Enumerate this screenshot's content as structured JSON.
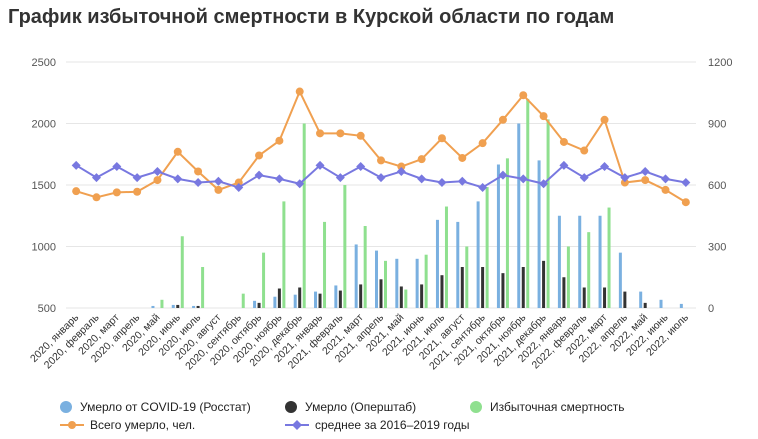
{
  "title": "График избыточной смертности в Курской области по годам",
  "chart_data": {
    "type": "bar",
    "categories": [
      "2020, январь",
      "2020, февраль",
      "2020, март",
      "2020, апрель",
      "2020, май",
      "2020, июнь",
      "2020, июль",
      "2020, август",
      "2020, сентябрь",
      "2020, октябрь",
      "2020, ноябрь",
      "2020, декабрь",
      "2021, январь",
      "2021, февраль",
      "2021, март",
      "2021, апрель",
      "2021, май",
      "2021, июнь",
      "2021, июль",
      "2021, август",
      "2021, сентябрь",
      "2021, октябрь",
      "2021, ноябрь",
      "2021, декабрь",
      "2022, январь",
      "2022, февраль",
      "2022, март",
      "2022, апрель",
      "2022, май",
      "2022, июнь",
      "2022, июль"
    ],
    "left_axis": {
      "ylim": [
        500,
        2500
      ],
      "ticks": [
        500,
        1000,
        1500,
        2000,
        2500
      ]
    },
    "right_axis": {
      "ylim": [
        0,
        1200
      ],
      "ticks": [
        0,
        300,
        600,
        900,
        1200
      ]
    },
    "grid": true,
    "legend_position": "bottom",
    "series": [
      {
        "name": "Умерло от COVID-19 (Росстат)",
        "kind": "bar",
        "axis": "right",
        "color": "#7ab0e0",
        "values": [
          0,
          0,
          0,
          0,
          10,
          15,
          10,
          0,
          0,
          35,
          55,
          65,
          80,
          110,
          310,
          280,
          240,
          240,
          430,
          420,
          520,
          700,
          900,
          720,
          450,
          450,
          450,
          270,
          80,
          40,
          20
        ]
      },
      {
        "name": "Умерло (Оперштаб)",
        "kind": "bar",
        "axis": "right",
        "color": "#333333",
        "values": [
          0,
          0,
          0,
          0,
          0,
          15,
          10,
          0,
          0,
          25,
          95,
          100,
          70,
          85,
          115,
          140,
          105,
          115,
          160,
          200,
          200,
          170,
          200,
          230,
          150,
          100,
          100,
          80,
          25,
          0,
          0
        ]
      },
      {
        "name": "Избыточная смертность",
        "kind": "bar",
        "axis": "right",
        "color": "#8fe08f",
        "values": [
          0,
          0,
          0,
          0,
          40,
          350,
          200,
          0,
          70,
          270,
          520,
          900,
          420,
          600,
          400,
          230,
          90,
          260,
          495,
          300,
          590,
          730,
          1020,
          920,
          300,
          370,
          490,
          0,
          0,
          0,
          0
        ]
      },
      {
        "name": "Всего умерло, чел.",
        "kind": "line",
        "axis": "left",
        "color": "#f0a050",
        "values": [
          1450,
          1400,
          1440,
          1445,
          1540,
          1770,
          1610,
          1460,
          1520,
          1740,
          1860,
          2260,
          1920,
          1920,
          1900,
          1700,
          1650,
          1710,
          1880,
          1720,
          1840,
          2030,
          2230,
          2060,
          1850,
          1780,
          2030,
          1520,
          1540,
          1460,
          1360
        ]
      },
      {
        "name": "среднее за 2016–2019 годы",
        "kind": "line",
        "axis": "left",
        "color": "#7878e0",
        "values": [
          1660,
          1560,
          1650,
          1560,
          1610,
          1550,
          1520,
          1530,
          1480,
          1580,
          1550,
          1510,
          1660,
          1560,
          1650,
          1560,
          1610,
          1550,
          1520,
          1530,
          1480,
          1580,
          1550,
          1510,
          1660,
          1560,
          1650,
          1560,
          1610,
          1550,
          1520
        ]
      }
    ]
  }
}
